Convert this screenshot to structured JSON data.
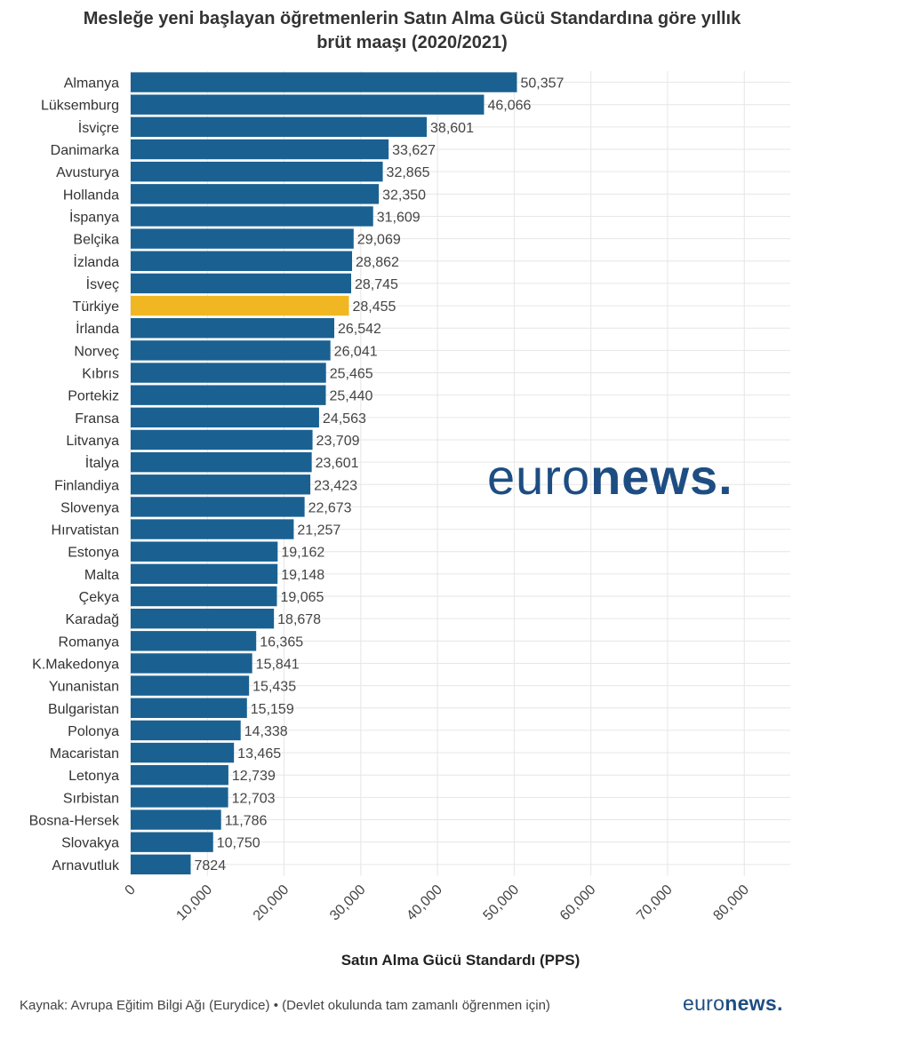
{
  "chart_data": {
    "type": "bar",
    "orientation": "horizontal",
    "title": "Mesleğe yeni başlayan öğretmenlerin Satın Alma Gücü Standardına göre yıllık brüt maaşı (2020/2021)",
    "title_lines": [
      "Mesleğe yeni başlayan öğretmenlerin Satın Alma Gücü Standardına göre yıllık",
      "brüt maaşı (2020/2021)"
    ],
    "xlabel": "Satın Alma Gücü Standardı (PPS)",
    "ylabel": "",
    "xlim": [
      0,
      86000
    ],
    "x_ticks": [
      0,
      10000,
      20000,
      30000,
      40000,
      50000,
      60000,
      70000,
      80000
    ],
    "x_tick_labels": [
      "0",
      "10,000",
      "20,000",
      "30,000",
      "40,000",
      "50,000",
      "60,000",
      "70,000",
      "80,000"
    ],
    "grid": true,
    "bar_color": "#1a6192",
    "highlight_color": "#f0b723",
    "highlight_category": "Türkiye",
    "categories": [
      "Almanya",
      "Lüksemburg",
      "İsviçre",
      "Danimarka",
      "Avusturya",
      "Hollanda",
      "İspanya",
      "Belçika",
      "İzlanda",
      "İsveç",
      "Türkiye",
      "İrlanda",
      "Norveç",
      "Kıbrıs",
      "Portekiz",
      "Fransa",
      "Litvanya",
      "İtalya",
      "Finlandiya",
      "Slovenya",
      "Hırvatistan",
      "Estonya",
      "Malta",
      "Çekya",
      "Karadağ",
      "Romanya",
      "K.Makedonya",
      "Yunanistan",
      "Bulgaristan",
      "Polonya",
      "Macaristan",
      "Letonya",
      "Sırbistan",
      "Bosna-Hersek",
      "Slovakya",
      "Arnavutluk"
    ],
    "values": [
      50357,
      46066,
      38601,
      33627,
      32865,
      32350,
      31609,
      29069,
      28862,
      28745,
      28455,
      26542,
      26041,
      25465,
      25440,
      24563,
      23709,
      23601,
      23423,
      22673,
      21257,
      19162,
      19148,
      19065,
      18678,
      16365,
      15841,
      15435,
      15159,
      14338,
      13465,
      12739,
      12703,
      11786,
      10750,
      7824
    ],
    "value_labels": [
      "50,357",
      "46,066",
      "38,601",
      "33,627",
      "32,865",
      "32,350",
      "31,609",
      "29,069",
      "28,862",
      "28,745",
      "28,455",
      "26,542",
      "26,041",
      "25,465",
      "25,440",
      "24,563",
      "23,709",
      "23,601",
      "23,423",
      "22,673",
      "21,257",
      "19,162",
      "19,148",
      "19,065",
      "18,678",
      "16,365",
      "15,841",
      "15,435",
      "15,159",
      "14,338",
      "13,465",
      "12,739",
      "12,703",
      "11,786",
      "10,750",
      "7824"
    ]
  },
  "watermark": {
    "light": "euro",
    "bold": "news",
    "dot": ".",
    "color": "#1d4d82"
  },
  "footer": {
    "source": "Kaynak: Avrupa Eğitim Bilgi Ağı (Eurydice) • (Devlet okulunda tam zamanlı öğrenmen için)",
    "logo_light": "euro",
    "logo_bold": "news",
    "logo_dot": "."
  }
}
